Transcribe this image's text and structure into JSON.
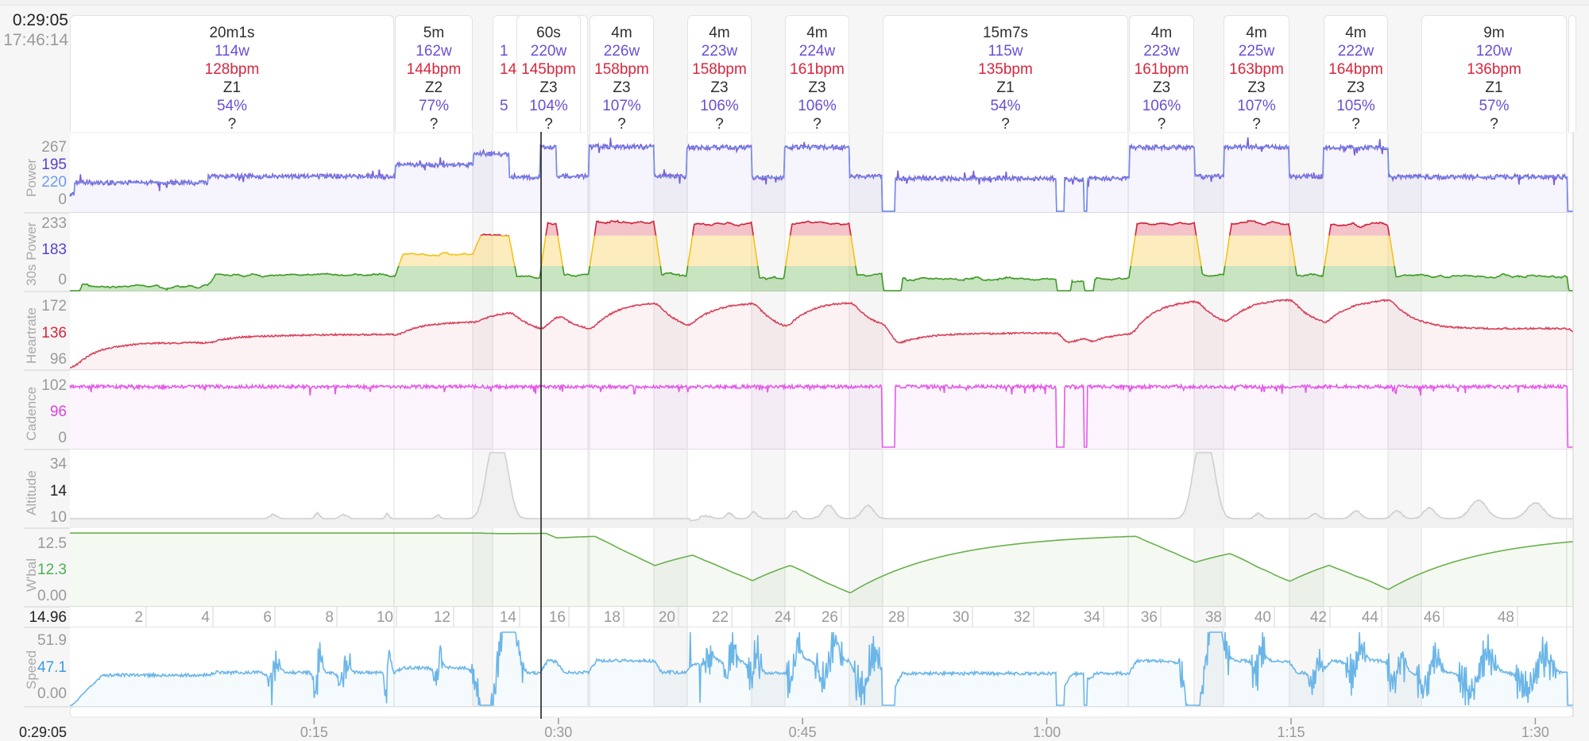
{
  "cursor": {
    "elapsed": "0:29:05",
    "clock": "17:46:14"
  },
  "intervals": [
    {
      "duration": "20m1s",
      "power": "114w",
      "hr": "128bpm",
      "zone": "Z1",
      "pct": "54%",
      "extra": "?"
    },
    {
      "duration": "5m",
      "power": "162w",
      "hr": "144bpm",
      "zone": "Z2",
      "pct": "77%",
      "extra": "?"
    },
    {
      "duration": "",
      "power": "1",
      "hr": "14",
      "zone": "",
      "pct": "5",
      "extra": "",
      "partial": true
    },
    {
      "duration": "60s",
      "power": "220w",
      "hr": "145bpm",
      "zone": "Z3",
      "pct": "104%",
      "extra": "?"
    },
    {
      "duration": "4m",
      "power": "226w",
      "hr": "158bpm",
      "zone": "Z3",
      "pct": "107%",
      "extra": "?"
    },
    {
      "duration": "4m",
      "power": "223w",
      "hr": "158bpm",
      "zone": "Z3",
      "pct": "106%",
      "extra": "?"
    },
    {
      "duration": "4m",
      "power": "224w",
      "hr": "161bpm",
      "zone": "Z3",
      "pct": "106%",
      "extra": "?"
    },
    {
      "duration": "15m7s",
      "power": "115w",
      "hr": "135bpm",
      "zone": "Z1",
      "pct": "54%",
      "extra": "?"
    },
    {
      "duration": "4m",
      "power": "223w",
      "hr": "161bpm",
      "zone": "Z3",
      "pct": "106%",
      "extra": "?"
    },
    {
      "duration": "4m",
      "power": "225w",
      "hr": "163bpm",
      "zone": "Z3",
      "pct": "107%",
      "extra": "?"
    },
    {
      "duration": "4m",
      "power": "222w",
      "hr": "164bpm",
      "zone": "Z3",
      "pct": "105%",
      "extra": "?"
    },
    {
      "duration": "9m",
      "power": "120w",
      "hr": "136bpm",
      "zone": "Z1",
      "pct": "57%",
      "extra": "?"
    }
  ],
  "panels": {
    "power": {
      "label": "Power",
      "max": "267",
      "cursor": "195",
      "target": "220",
      "min": "0",
      "color": "#7b5fd6",
      "cursor_color": "#5a3fd0",
      "target_color": "#6f9cf0"
    },
    "power30": {
      "label": "30s Power",
      "max": "233",
      "cursor": "183",
      "min": "0",
      "cursor_color": "#5a3fd0"
    },
    "heartrate": {
      "label": "Heartrate",
      "max": "172",
      "cursor": "136",
      "min": "96",
      "color": "#d9415a"
    },
    "cadence": {
      "label": "Cadence",
      "max": "102",
      "cursor": "96",
      "min": "0",
      "color": "#e35be8"
    },
    "altitude": {
      "label": "Altitude",
      "max": "34",
      "cursor": "14",
      "min": "10",
      "color": "#cfcfcf"
    },
    "wbal": {
      "label": "W'bal",
      "max": "12.5",
      "cursor": "12.3",
      "min": "0.00",
      "color": "#6ab04c"
    },
    "speed": {
      "label": "Speed",
      "max": "51.9",
      "cursor": "47.1",
      "min": "0.00",
      "color": "#6bb6e8"
    }
  },
  "distance_axis": {
    "cursor": "14.96",
    "ticks": [
      "2",
      "4",
      "6",
      "8",
      "10",
      "12",
      "14",
      "16",
      "18",
      "20",
      "22",
      "24",
      "26",
      "28",
      "30",
      "32",
      "34",
      "36",
      "38",
      "40",
      "42",
      "44",
      "46",
      "48"
    ]
  },
  "time_axis": {
    "start": "0:29:05",
    "ticks": [
      "0:15",
      "0:30",
      "0:45",
      "1:00",
      "1:15",
      "1:30"
    ]
  },
  "power_segments": [
    [
      0,
      0.3,
      60
    ],
    [
      0.3,
      8.5,
      100
    ],
    [
      8.5,
      20,
      122
    ],
    [
      20,
      24.8,
      162
    ],
    [
      24.8,
      27,
      200
    ],
    [
      27,
      28.9,
      118
    ],
    [
      28.9,
      29.9,
      225
    ],
    [
      29.9,
      31.9,
      122
    ],
    [
      31.9,
      35.9,
      226
    ],
    [
      35.9,
      37.9,
      122
    ],
    [
      37.9,
      41.9,
      223
    ],
    [
      41.9,
      43.9,
      118
    ],
    [
      43.9,
      47.9,
      224
    ],
    [
      47.9,
      49.9,
      122
    ],
    [
      49.9,
      50.7,
      0
    ],
    [
      50.7,
      60.6,
      115
    ],
    [
      60.6,
      61.1,
      0
    ],
    [
      61.1,
      62.3,
      112
    ],
    [
      62.3,
      62.5,
      0
    ],
    [
      62.5,
      65.1,
      115
    ],
    [
      65.1,
      69.1,
      223
    ],
    [
      69.1,
      70.9,
      122
    ],
    [
      70.9,
      74.9,
      225
    ],
    [
      74.9,
      77.0,
      122
    ],
    [
      77.0,
      81.0,
      222
    ],
    [
      81.0,
      92.0,
      120
    ],
    [
      92.0,
      92.5,
      0
    ]
  ],
  "altitude_bumps": [
    [
      25.9,
      22,
      0.6
    ],
    [
      26.6,
      22,
      0.6
    ],
    [
      69.3,
      22,
      0.6
    ],
    [
      70.0,
      22,
      0.6
    ],
    [
      12.5,
      1.5,
      0.3
    ],
    [
      15.2,
      2.2,
      0.2
    ],
    [
      16.8,
      1.5,
      0.3
    ],
    [
      19.5,
      2,
      0.15
    ],
    [
      22.6,
      1.5,
      0.2
    ],
    [
      39,
      1,
      0.5
    ],
    [
      40.5,
      2,
      0.3
    ],
    [
      42,
      2.5,
      0.3
    ],
    [
      44.5,
      3,
      0.3
    ],
    [
      46.6,
      5,
      0.5
    ],
    [
      49,
      5,
      0.5
    ],
    [
      73,
      2,
      0.3
    ],
    [
      76.5,
      2,
      0.3
    ],
    [
      79,
      3,
      0.4
    ],
    [
      81.5,
      3,
      0.4
    ],
    [
      83.5,
      4,
      0.5
    ],
    [
      86.5,
      7,
      0.7
    ],
    [
      90,
      6,
      0.7
    ]
  ]
}
